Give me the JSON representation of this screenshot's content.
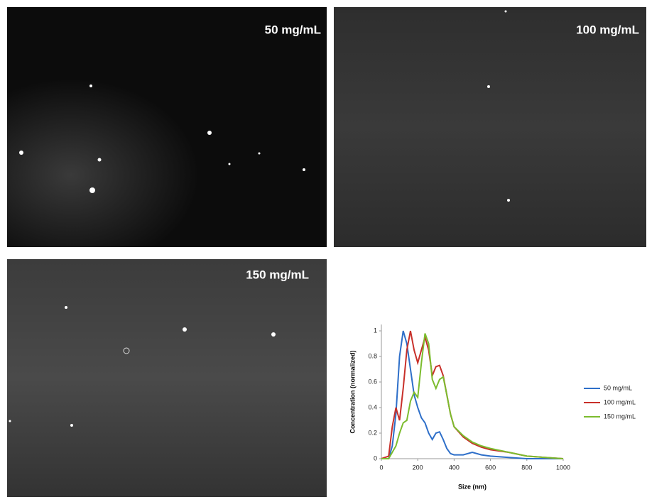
{
  "panels": [
    {
      "label": "50 mg/mL"
    },
    {
      "label": "100 mg/mL"
    },
    {
      "label": "150 mg/mL"
    }
  ],
  "chart_data": {
    "type": "line",
    "x_label": "Size (nm)",
    "y_label": "Concentration (normalized)",
    "x": [
      0,
      40,
      60,
      80,
      100,
      120,
      140,
      160,
      180,
      200,
      220,
      240,
      260,
      280,
      300,
      320,
      340,
      360,
      380,
      400,
      450,
      500,
      550,
      600,
      700,
      800,
      900,
      1000
    ],
    "series": [
      {
        "name": "50 mg/mL",
        "color": "#2e6fc9",
        "values": [
          0,
          0,
          0.1,
          0.35,
          0.8,
          1.0,
          0.9,
          0.7,
          0.5,
          0.4,
          0.32,
          0.28,
          0.2,
          0.15,
          0.2,
          0.21,
          0.15,
          0.08,
          0.04,
          0.03,
          0.03,
          0.05,
          0.03,
          0.02,
          0.01,
          0,
          0,
          0
        ]
      },
      {
        "name": "100 mg/mL",
        "color": "#c8302a",
        "values": [
          0,
          0.02,
          0.25,
          0.4,
          0.3,
          0.55,
          0.85,
          1.0,
          0.85,
          0.75,
          0.85,
          0.95,
          0.85,
          0.65,
          0.72,
          0.73,
          0.65,
          0.5,
          0.35,
          0.25,
          0.17,
          0.12,
          0.09,
          0.07,
          0.05,
          0.02,
          0.01,
          0
        ]
      },
      {
        "name": "150 mg/mL",
        "color": "#7cbc2e",
        "values": [
          0,
          0,
          0.05,
          0.1,
          0.2,
          0.28,
          0.3,
          0.45,
          0.52,
          0.48,
          0.75,
          0.98,
          0.9,
          0.62,
          0.55,
          0.62,
          0.64,
          0.5,
          0.35,
          0.25,
          0.18,
          0.13,
          0.1,
          0.08,
          0.05,
          0.02,
          0.01,
          0
        ]
      }
    ],
    "xlim": [
      0,
      1000
    ],
    "xticks": [
      0,
      200,
      400,
      600,
      800,
      1000
    ],
    "ylim": [
      0,
      1.05
    ],
    "yticks": [
      0,
      0.2,
      0.4,
      0.6,
      0.8,
      1
    ],
    "grid": false
  }
}
